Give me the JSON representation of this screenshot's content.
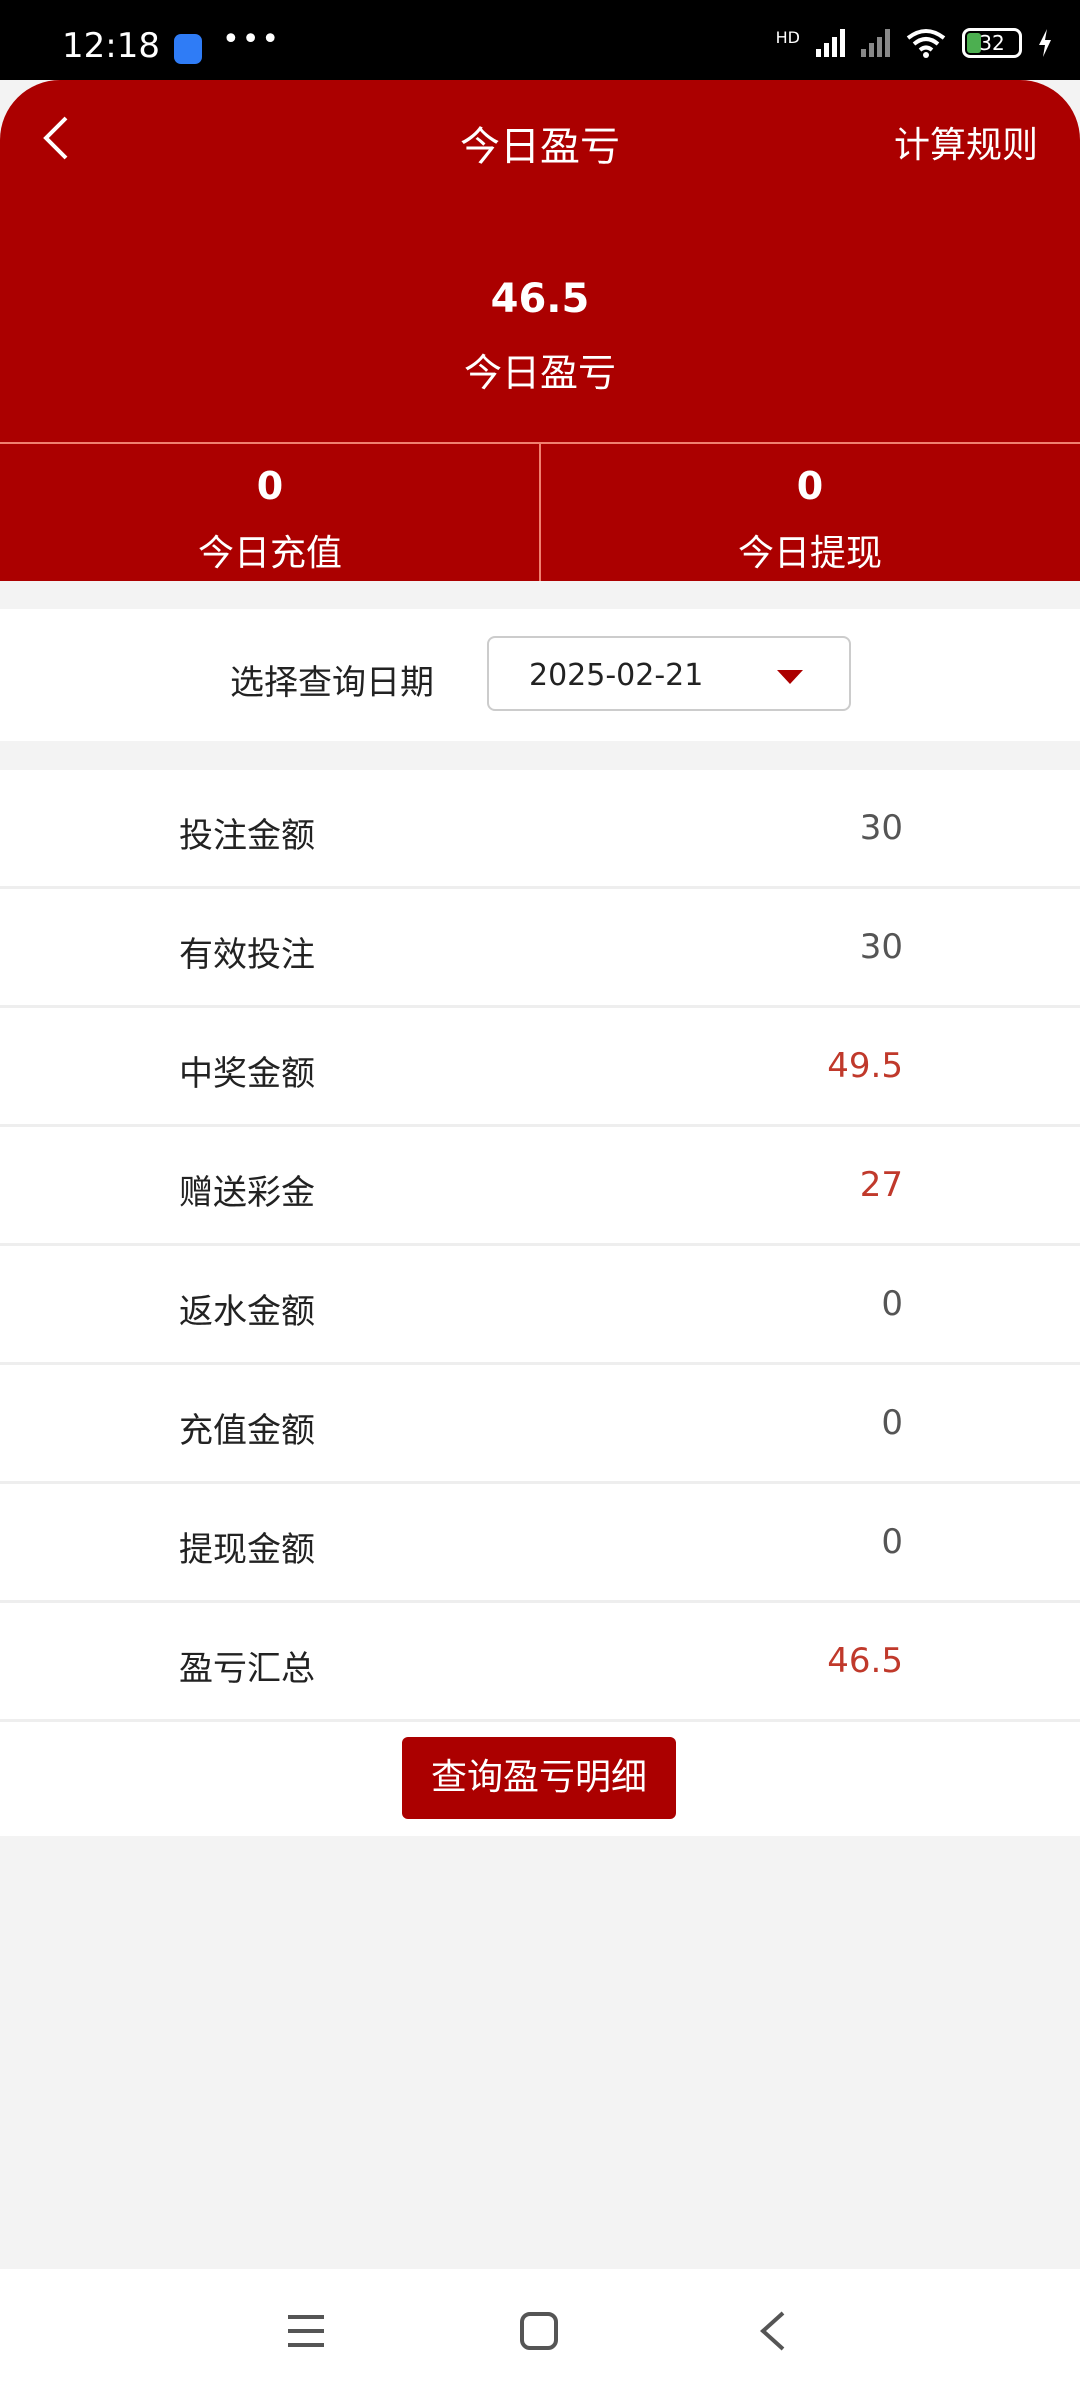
{
  "status_bar": {
    "time": "12:18",
    "dots": "•••",
    "network_label": "HD",
    "battery": "32"
  },
  "header": {
    "title": "今日盈亏",
    "rules_label": "计算规则",
    "profit_value": "46.5",
    "profit_label": "今日盈亏"
  },
  "stats": [
    {
      "value": "0",
      "label": "今日充值"
    },
    {
      "value": "0",
      "label": "今日提现"
    }
  ],
  "date_filter": {
    "label": "选择查询日期",
    "value": "2025-02-21"
  },
  "rows": [
    {
      "label": "投注金额",
      "value": "30",
      "highlight": false
    },
    {
      "label": "有效投注",
      "value": "30",
      "highlight": false
    },
    {
      "label": "中奖金额",
      "value": "49.5",
      "highlight": true
    },
    {
      "label": "赠送彩金",
      "value": "27",
      "highlight": true
    },
    {
      "label": "返水金额",
      "value": "0",
      "highlight": false
    },
    {
      "label": "充值金额",
      "value": "0",
      "highlight": false
    },
    {
      "label": "提现金额",
      "value": "0",
      "highlight": false
    },
    {
      "label": "盈亏汇总",
      "value": "46.5",
      "highlight": true
    }
  ],
  "detail_button": "查询盈亏明细",
  "colors": {
    "brand": "#ab0000",
    "highlight_value": "#c0392b"
  }
}
